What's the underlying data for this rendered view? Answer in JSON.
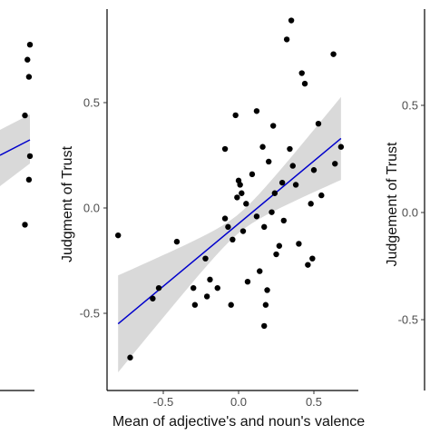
{
  "chart_data": [
    {
      "type": "scatter",
      "panel": "left (cropped)",
      "title": "",
      "xlabel": "",
      "ylabel": "",
      "points": [
        {
          "x": 0.6,
          "y": 0.8
        },
        {
          "x": 0.55,
          "y": 0.73
        },
        {
          "x": 0.58,
          "y": 0.65
        },
        {
          "x": 0.5,
          "y": 0.47
        },
        {
          "x": 0.6,
          "y": 0.28
        },
        {
          "x": 0.58,
          "y": 0.17
        },
        {
          "x": 0.5,
          "y": -0.04
        }
      ],
      "regression": {
        "color": "#0000cc",
        "band_color": "#d9d9d9"
      }
    },
    {
      "type": "scatter",
      "panel": "center",
      "title": "",
      "xlabel": "Mean of adjective's and noun's valence",
      "ylabel": "Judgment of Trust",
      "xlim": [
        -0.85,
        0.72
      ],
      "ylim": [
        -0.8,
        0.92
      ],
      "xticks": [
        "-0.5",
        "0.0",
        "0.5"
      ],
      "yticks": [
        "-0.5",
        "0.0",
        "0.5"
      ],
      "grid": false,
      "points": [
        {
          "x": -0.8,
          "y": -0.13
        },
        {
          "x": -0.72,
          "y": -0.71
        },
        {
          "x": -0.57,
          "y": -0.43
        },
        {
          "x": -0.53,
          "y": -0.38
        },
        {
          "x": -0.41,
          "y": -0.16
        },
        {
          "x": -0.3,
          "y": -0.38
        },
        {
          "x": -0.29,
          "y": -0.46
        },
        {
          "x": -0.22,
          "y": -0.24
        },
        {
          "x": -0.21,
          "y": -0.42
        },
        {
          "x": -0.19,
          "y": -0.34
        },
        {
          "x": -0.14,
          "y": -0.38
        },
        {
          "x": -0.09,
          "y": 0.28
        },
        {
          "x": -0.09,
          "y": -0.05
        },
        {
          "x": -0.07,
          "y": -0.09
        },
        {
          "x": -0.05,
          "y": -0.46
        },
        {
          "x": -0.02,
          "y": 0.44
        },
        {
          "x": -0.01,
          "y": 0.05
        },
        {
          "x": -0.04,
          "y": -0.15
        },
        {
          "x": 0.0,
          "y": 0.13
        },
        {
          "x": 0.01,
          "y": 0.11
        },
        {
          "x": 0.02,
          "y": 0.07
        },
        {
          "x": 0.03,
          "y": -0.11
        },
        {
          "x": 0.05,
          "y": 0.02
        },
        {
          "x": 0.06,
          "y": -0.35
        },
        {
          "x": 0.09,
          "y": 0.16
        },
        {
          "x": 0.12,
          "y": 0.46
        },
        {
          "x": 0.12,
          "y": -0.04
        },
        {
          "x": 0.14,
          "y": -0.3
        },
        {
          "x": 0.16,
          "y": 0.29
        },
        {
          "x": 0.17,
          "y": -0.09
        },
        {
          "x": 0.18,
          "y": -0.46
        },
        {
          "x": 0.17,
          "y": -0.56
        },
        {
          "x": 0.19,
          "y": -0.39
        },
        {
          "x": 0.2,
          "y": 0.22
        },
        {
          "x": 0.22,
          "y": -0.02
        },
        {
          "x": 0.23,
          "y": 0.39
        },
        {
          "x": 0.24,
          "y": 0.07
        },
        {
          "x": 0.25,
          "y": -0.22
        },
        {
          "x": 0.27,
          "y": -0.18
        },
        {
          "x": 0.29,
          "y": 0.12
        },
        {
          "x": 0.3,
          "y": -0.06
        },
        {
          "x": 0.32,
          "y": 0.8
        },
        {
          "x": 0.34,
          "y": 0.28
        },
        {
          "x": 0.35,
          "y": 0.89
        },
        {
          "x": 0.36,
          "y": 0.2
        },
        {
          "x": 0.38,
          "y": 0.11
        },
        {
          "x": 0.4,
          "y": -0.17
        },
        {
          "x": 0.42,
          "y": 0.64
        },
        {
          "x": 0.44,
          "y": 0.59
        },
        {
          "x": 0.46,
          "y": -0.27
        },
        {
          "x": 0.48,
          "y": 0.02
        },
        {
          "x": 0.49,
          "y": -0.24
        },
        {
          "x": 0.5,
          "y": 0.18
        },
        {
          "x": 0.53,
          "y": 0.4
        },
        {
          "x": 0.55,
          "y": 0.06
        },
        {
          "x": 0.63,
          "y": 0.73
        },
        {
          "x": 0.64,
          "y": 0.21
        },
        {
          "x": 0.68,
          "y": 0.29
        }
      ],
      "regression": {
        "x": [
          -0.8,
          0.68
        ],
        "y": [
          -0.55,
          0.33
        ],
        "ci_lower": [
          -0.78,
          0.21
        ],
        "ci_upper": [
          -0.32,
          0.46
        ],
        "ci_x": [
          -0.8,
          0.68
        ],
        "color": "#0000cc",
        "band_color": "#d9d9d9"
      }
    },
    {
      "type": "scatter",
      "panel": "right (cropped)",
      "title": "",
      "xlabel": "",
      "ylabel": "Judgement of Trust",
      "yticks": [
        "0.5",
        "0.0",
        "-0.5"
      ],
      "points": []
    }
  ]
}
